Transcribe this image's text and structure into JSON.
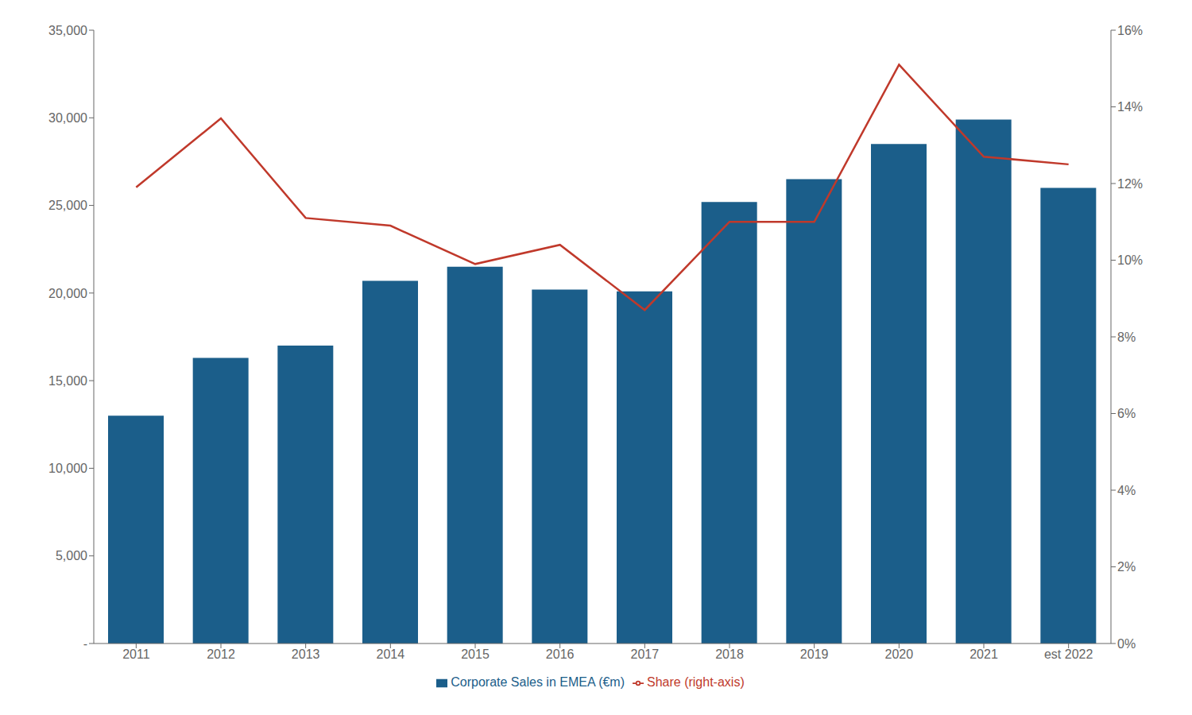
{
  "chart_data": {
    "type": "bar",
    "categories": [
      "2011",
      "2012",
      "2013",
      "2014",
      "2015",
      "2016",
      "2017",
      "2018",
      "2019",
      "2020",
      "2021",
      "est 2022"
    ],
    "series": [
      {
        "name": "Corporate Sales in EMEA (€m)",
        "type": "bar",
        "color": "#1b5e8a",
        "values": [
          13000,
          16300,
          17000,
          20700,
          21500,
          20200,
          20100,
          25200,
          26500,
          28500,
          29900,
          26000
        ]
      },
      {
        "name": "Share (right-axis)",
        "type": "line",
        "color": "#c0392b",
        "axis": "y2",
        "values": [
          0.119,
          0.137,
          0.111,
          0.109,
          0.099,
          0.104,
          0.087,
          0.11,
          0.11,
          0.151,
          0.127,
          0.125
        ]
      }
    ],
    "ylim": [
      0,
      35000
    ],
    "yticks": [
      {
        "value": 0,
        "label": "-"
      },
      {
        "value": 5000,
        "label": "5,000"
      },
      {
        "value": 10000,
        "label": "10,000"
      },
      {
        "value": 15000,
        "label": "15,000"
      },
      {
        "value": 20000,
        "label": "20,000"
      },
      {
        "value": 25000,
        "label": "25,000"
      },
      {
        "value": 30000,
        "label": "30,000"
      },
      {
        "value": 35000,
        "label": "35,000"
      }
    ],
    "y2lim": [
      0,
      0.16
    ],
    "y2ticks": [
      {
        "value": 0,
        "label": "0%"
      },
      {
        "value": 0.02,
        "label": "2%"
      },
      {
        "value": 0.04,
        "label": "4%"
      },
      {
        "value": 0.06,
        "label": "6%"
      },
      {
        "value": 0.08,
        "label": "8%"
      },
      {
        "value": 0.1,
        "label": "10%"
      },
      {
        "value": 0.12,
        "label": "12%"
      },
      {
        "value": 0.14,
        "label": "14%"
      },
      {
        "value": 0.16,
        "label": "16%"
      }
    ],
    "grid": false,
    "legend": "bottom"
  }
}
